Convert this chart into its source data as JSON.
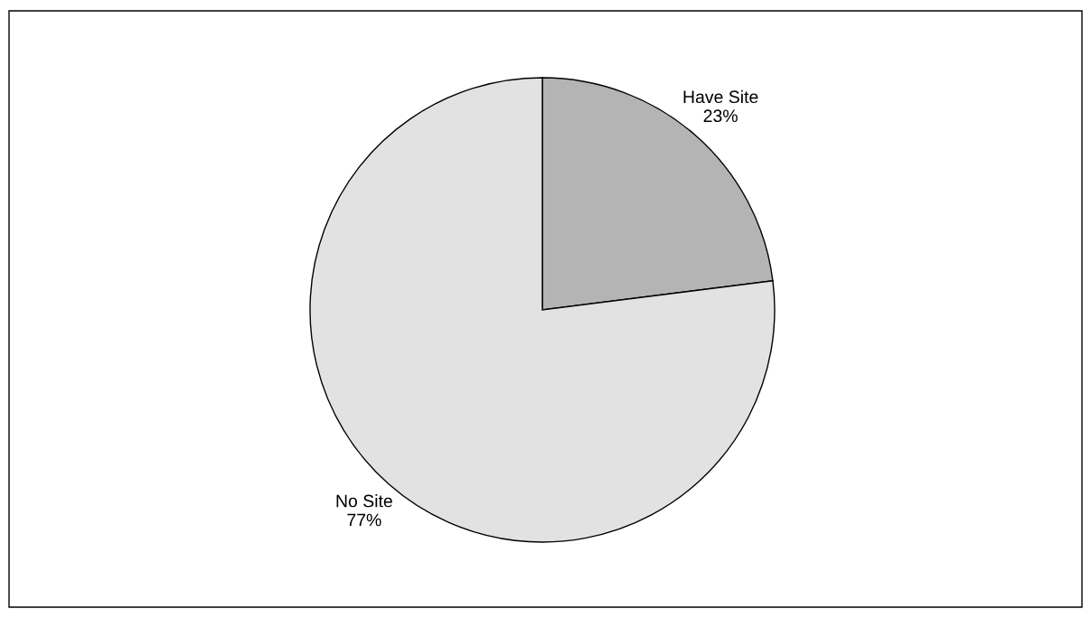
{
  "chart_data": {
    "type": "pie",
    "categories": [
      "Have Site",
      "No Site"
    ],
    "values": [
      23,
      77
    ],
    "value_labels": [
      "23%",
      "77%"
    ],
    "colors": [
      "#b4b4b4",
      "#e2e2e2"
    ],
    "legend": false
  }
}
